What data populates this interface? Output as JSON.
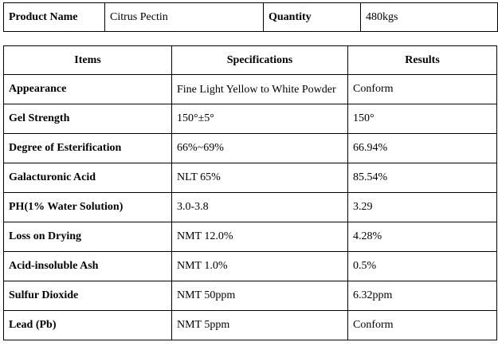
{
  "product_info": {
    "product_name_label": "Product Name",
    "product_name_value": "Citrus Pectin",
    "quantity_label": "Quantity",
    "quantity_value": "480kgs"
  },
  "spec_table": {
    "headers": {
      "items": "Items",
      "specifications": "Specifications",
      "results": "Results"
    },
    "rows": [
      {
        "item": "Appearance",
        "specification": "Fine Light Yellow to White Powder",
        "result": "Conform"
      },
      {
        "item": "Gel Strength",
        "specification": "150°±5°",
        "result": "150°"
      },
      {
        "item": "Degree of Esterification",
        "specification": "66%~69%",
        "result": "66.94%"
      },
      {
        "item": "Galacturonic Acid",
        "specification": "NLT 65%",
        "result": "85.54%"
      },
      {
        "item": "PH(1% Water Solution)",
        "specification": "3.0-3.8",
        "result": "3.29"
      },
      {
        "item": "Loss on Drying",
        "specification": "NMT 12.0%",
        "result": "4.28%"
      },
      {
        "item": "Acid-insoluble Ash",
        "specification": "NMT 1.0%",
        "result": "0.5%"
      },
      {
        "item": "Sulfur Dioxide",
        "specification": "NMT 50ppm",
        "result": "6.32ppm"
      },
      {
        "item": "Lead (Pb)",
        "specification": "NMT 5ppm",
        "result": "Conform"
      }
    ]
  }
}
